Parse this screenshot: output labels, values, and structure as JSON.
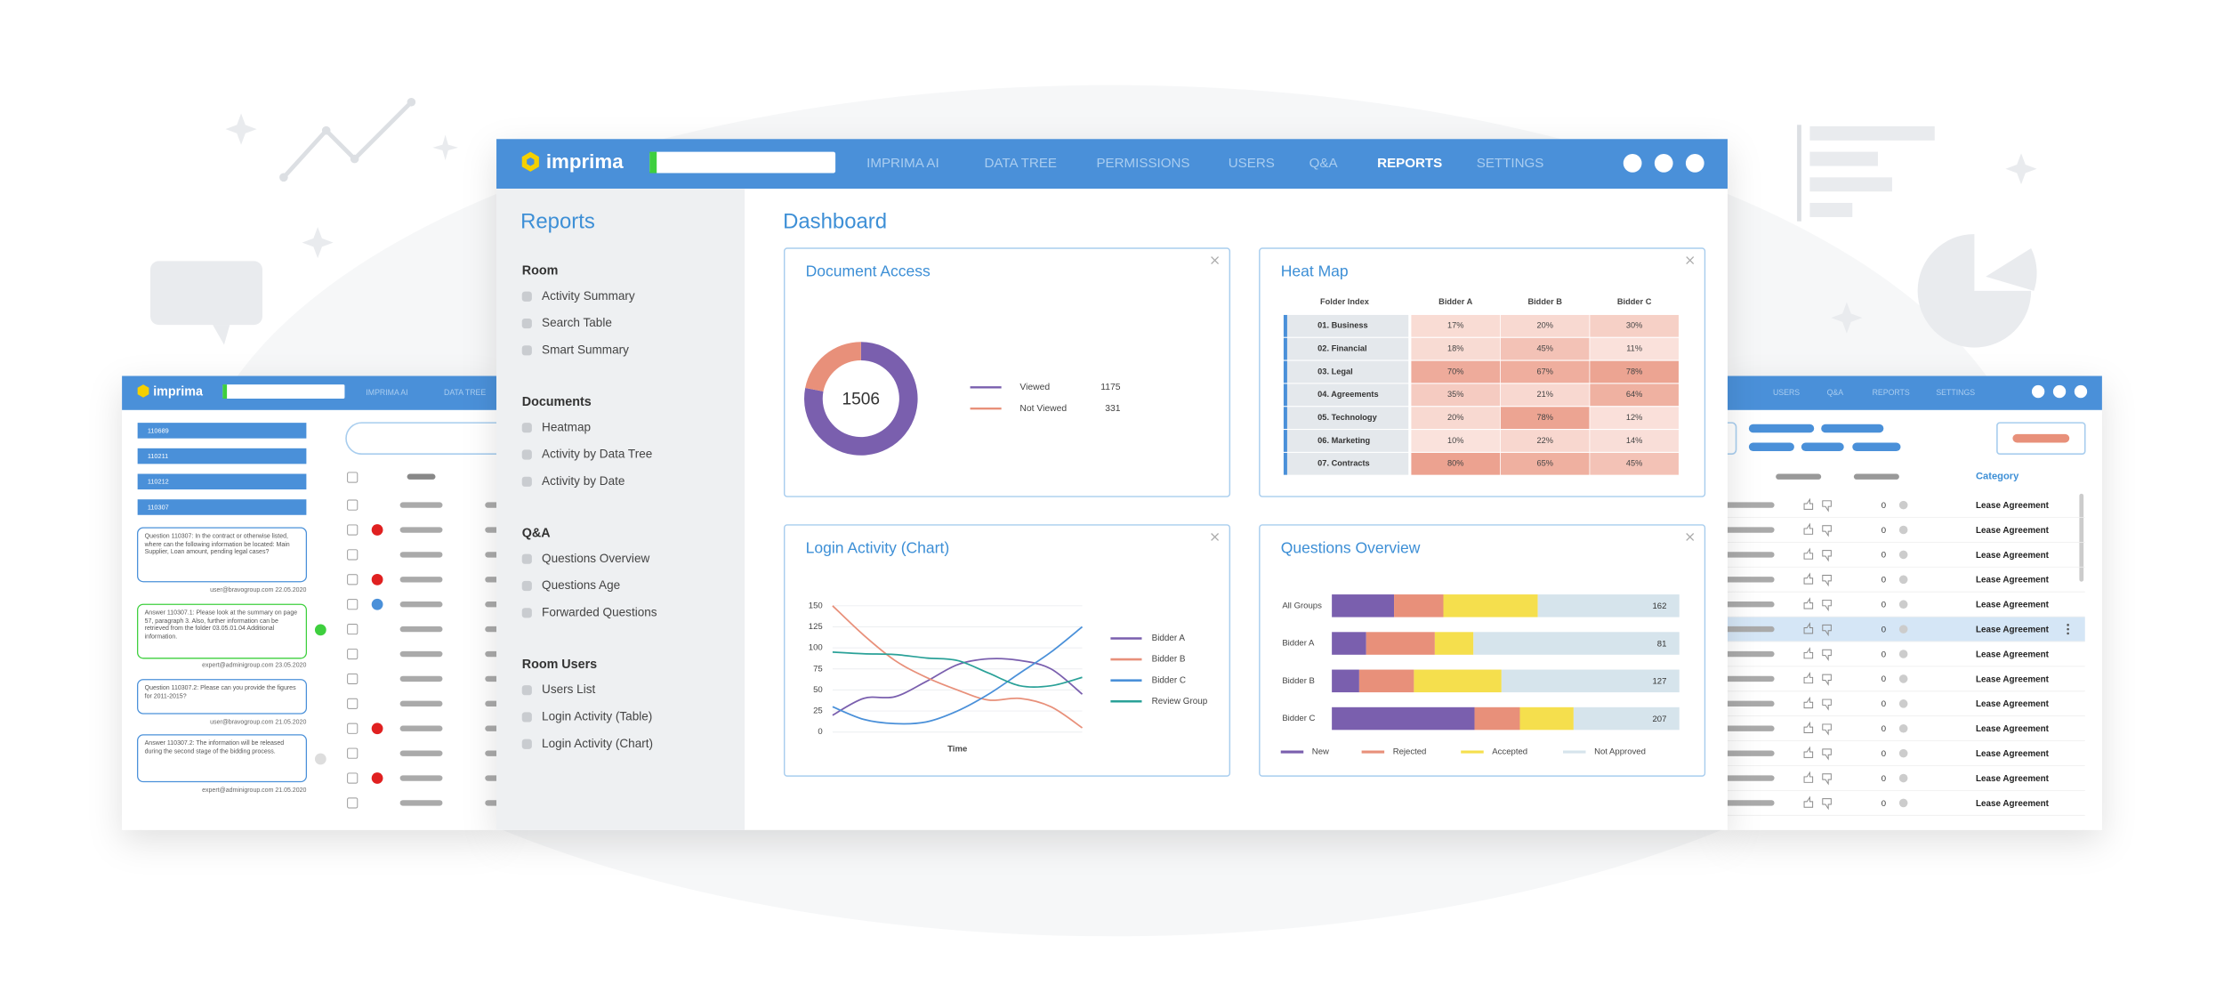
{
  "nav": {
    "logo": "imprima",
    "items": [
      "IMPRIMA AI",
      "DATA TREE",
      "PERMISSIONS",
      "USERS",
      "Q&A",
      "REPORTS",
      "SETTINGS"
    ],
    "active": 5
  },
  "sidebar": {
    "title": "Reports",
    "sections": [
      {
        "heading": "Room",
        "items": [
          "Activity Summary",
          "Search Table",
          "Smart Summary"
        ]
      },
      {
        "heading": "Documents",
        "items": [
          "Heatmap",
          "Activity by Data Tree",
          "Activity by Date"
        ]
      },
      {
        "heading": "Q&A",
        "items": [
          "Questions Overview",
          "Questions Age",
          "Forwarded Questions"
        ]
      },
      {
        "heading": "Room Users",
        "items": [
          "Users List",
          "Login Activity (Table)",
          "Login Activity (Chart)"
        ]
      }
    ]
  },
  "dashboard_title": "Dashboard",
  "left_panel": {
    "logo": "imprima",
    "nav": [
      "IMPRIMA AI",
      "DATA TREE"
    ],
    "folders": [
      "110689",
      "110211",
      "110212",
      "110307"
    ],
    "messages": [
      {
        "text": "Question 110307: In the contract or otherwise listed, where can the following information be located: Main Supplier, Loan amount, pending legal cases?",
        "author": "user@bravogroup.com 22.05.2020"
      },
      {
        "text": "Answer 110307.1: Please look at the summary on page 57, paragraph 3. Also, further information can be retrieved from the folder 03.05.01.04 Additional information.",
        "author": "expert@adminigroup.com 23.05.2020"
      },
      {
        "text": "Question 110307.2: Please can you provide the figures for 2011-2015?",
        "author": "user@bravogroup.com 21.05.2020"
      },
      {
        "text": "Answer 110307.2: The information will be released during the second stage of the bidding process.",
        "author": "expert@adminigroup.com 21.05.2020"
      }
    ]
  },
  "right_panel": {
    "nav": [
      "USERS",
      "Q&A",
      "REPORTS",
      "SETTINGS"
    ],
    "column": "Category",
    "rows": [
      {
        "count": 0,
        "category": "Lease Agreement"
      },
      {
        "count": 0,
        "category": "Lease Agreement"
      },
      {
        "count": 0,
        "category": "Lease Agreement"
      },
      {
        "count": 0,
        "category": "Lease Agreement"
      },
      {
        "count": 0,
        "category": "Lease Agreement"
      },
      {
        "count": 0,
        "category": "Lease Agreement"
      },
      {
        "count": 0,
        "category": "Lease Agreement"
      },
      {
        "count": 0,
        "category": "Lease Agreement"
      },
      {
        "count": 0,
        "category": "Lease Agreement"
      },
      {
        "count": 0,
        "category": "Lease Agreement"
      },
      {
        "count": 0,
        "category": "Lease Agreement"
      },
      {
        "count": 0,
        "category": "Lease Agreement"
      },
      {
        "count": 0,
        "category": "Lease Agreement"
      }
    ]
  },
  "chart_data": [
    {
      "type": "pie",
      "title": "Document Access",
      "donut": true,
      "total": 1506,
      "categories": [
        "Viewed",
        "Not Viewed"
      ],
      "values": [
        1175,
        331
      ],
      "colors": [
        "#7a5fae",
        "#e8907a"
      ]
    },
    {
      "type": "heatmap",
      "title": "Heat Map",
      "row_header": "Folder Index",
      "columns": [
        "Bidder A",
        "Bidder B",
        "Bidder C"
      ],
      "rows": [
        "01. Business",
        "02. Financial",
        "03. Legal",
        "04. Agreements",
        "05. Technology",
        "06. Marketing",
        "07. Contracts"
      ],
      "values": [
        [
          17,
          20,
          30
        ],
        [
          18,
          45,
          11
        ],
        [
          70,
          67,
          78
        ],
        [
          35,
          21,
          64
        ],
        [
          20,
          78,
          12
        ],
        [
          10,
          22,
          14
        ],
        [
          80,
          65,
          45
        ]
      ],
      "value_labels": [
        [
          "17%",
          "20%",
          "30%"
        ],
        [
          "18%",
          "45%",
          "11%"
        ],
        [
          "70%",
          "67%",
          "78%"
        ],
        [
          "35%",
          "21%",
          "64%"
        ],
        [
          "20%",
          "78%",
          "12%"
        ],
        [
          "10%",
          "22%",
          "14%"
        ],
        [
          "80%",
          "65%",
          "45%"
        ]
      ],
      "color_range": [
        "#fcebe7",
        "#e8907a"
      ],
      "vlim": [
        0,
        100
      ]
    },
    {
      "type": "line",
      "title": "Login Activity (Chart)",
      "xlabel": "Time",
      "categories": [
        null,
        null,
        null,
        null,
        null,
        null,
        null,
        null,
        null
      ],
      "series": [
        {
          "name": "Bidder A",
          "color": "#7a5fae",
          "values": [
            20,
            40,
            42,
            60,
            80,
            87,
            85,
            75,
            45
          ]
        },
        {
          "name": "Bidder B",
          "color": "#e8907a",
          "values": [
            150,
            115,
            85,
            65,
            50,
            38,
            40,
            30,
            5
          ]
        },
        {
          "name": "Bidder C",
          "color": "#4a90d9",
          "values": [
            30,
            15,
            10,
            12,
            25,
            45,
            70,
            95,
            125
          ]
        },
        {
          "name": "Review Group",
          "color": "#2aa198",
          "values": [
            95,
            93,
            92,
            88,
            85,
            70,
            55,
            55,
            65
          ]
        }
      ],
      "ylim": [
        0,
        150
      ],
      "yticks": [
        0,
        25,
        50,
        75,
        100,
        125,
        150
      ],
      "grid": true,
      "legend": "right"
    },
    {
      "type": "bar",
      "title": "Questions Overview",
      "orientation": "horizontal",
      "stacked": "percent",
      "categories": [
        "All Groups",
        "Bidder A",
        "Bidder B",
        "Bidder C"
      ],
      "series": [
        {
          "name": "New",
          "color": "#7a5fae",
          "values": [
            29,
            8,
            10,
            85
          ]
        },
        {
          "name": "Rejected",
          "color": "#e8907a",
          "values": [
            23,
            16,
            20,
            27
          ]
        },
        {
          "name": "Accepted",
          "color": "#f5df4d",
          "values": [
            44,
            9,
            32,
            32
          ]
        },
        {
          "name": "Not Approved",
          "color": "#d6e4ec",
          "values": [
            66,
            48,
            65,
            63
          ]
        }
      ],
      "totals": [
        162,
        81,
        127,
        207
      ],
      "legend": "bottom"
    }
  ]
}
